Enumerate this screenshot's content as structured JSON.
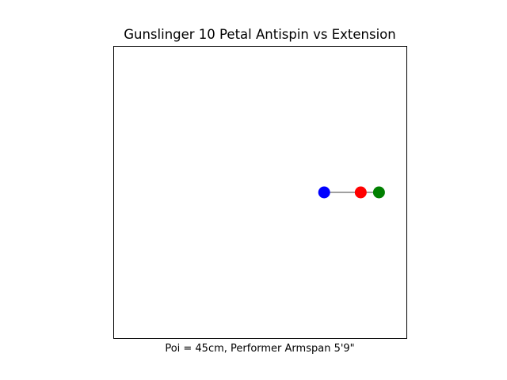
{
  "chart_data": {
    "type": "scatter",
    "title": "Gunslinger 10 Petal Antispin vs Extension",
    "xlabel": "Poi = 45cm, Performer Armspan 5'9\"",
    "ylabel": "",
    "axes_visible": false,
    "grid": false,
    "xlim": [
      -1.6,
      1.6
    ],
    "ylim": [
      -1.6,
      1.6
    ],
    "connector": {
      "from": [
        0.7,
        0.0
      ],
      "to": [
        1.3,
        0.0
      ],
      "color": "#000000"
    },
    "points": [
      {
        "x": 0.7,
        "y": 0.0,
        "color": "#0000ff"
      },
      {
        "x": 1.1,
        "y": 0.0,
        "color": "#ff0000"
      },
      {
        "x": 1.3,
        "y": 0.0,
        "color": "#008000"
      }
    ]
  }
}
